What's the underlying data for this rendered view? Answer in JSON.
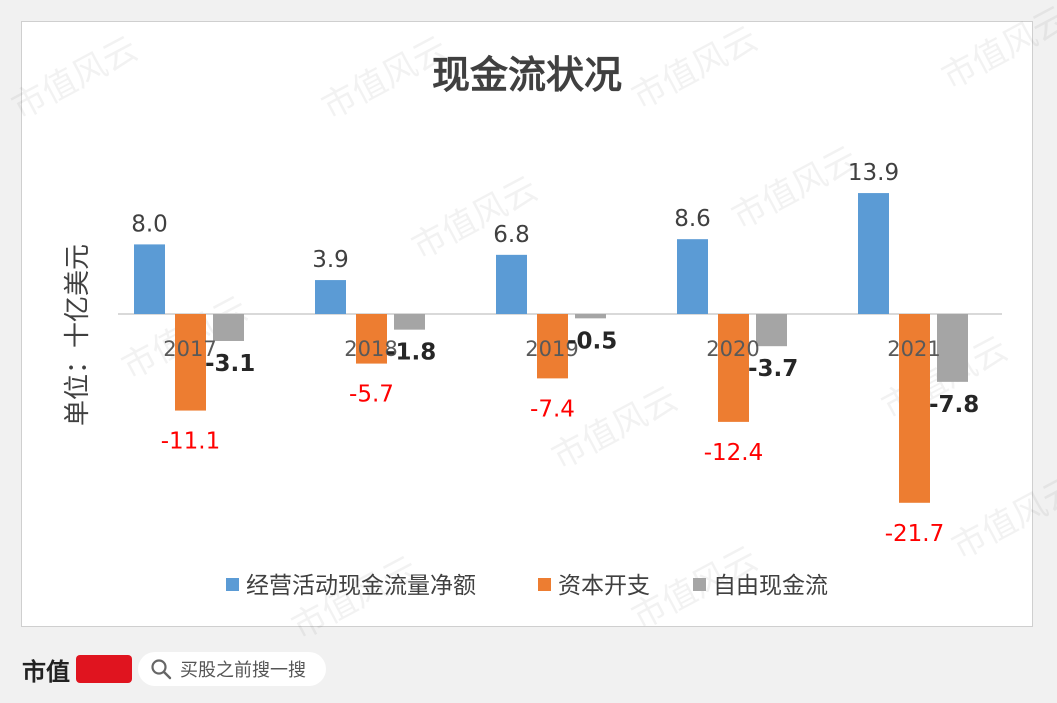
{
  "chart_data": {
    "type": "bar",
    "title": "现金流状况",
    "ylabel": "单位：十亿美元",
    "xlabel": "",
    "categories": [
      "2017",
      "2018",
      "2019",
      "2020",
      "2021"
    ],
    "series": [
      {
        "name": "经营活动现金流量净额",
        "color": "#5b9bd5",
        "values": [
          8.0,
          3.9,
          6.8,
          8.6,
          13.9
        ],
        "label_color": "#404040"
      },
      {
        "name": "资本开支",
        "color": "#ed7d31",
        "values": [
          -11.1,
          -5.7,
          -7.4,
          -12.4,
          -21.7
        ],
        "label_color": "#ff0000"
      },
      {
        "name": "自由现金流",
        "color": "#a5a5a5",
        "values": [
          -3.1,
          -1.8,
          -0.5,
          -3.7,
          -7.8
        ],
        "label_color": "#262626"
      }
    ],
    "legend_position": "bottom",
    "grid": false
  },
  "watermark": "市值风云",
  "footer": {
    "brand": "市值",
    "search_text": "买股之前搜一搜"
  }
}
